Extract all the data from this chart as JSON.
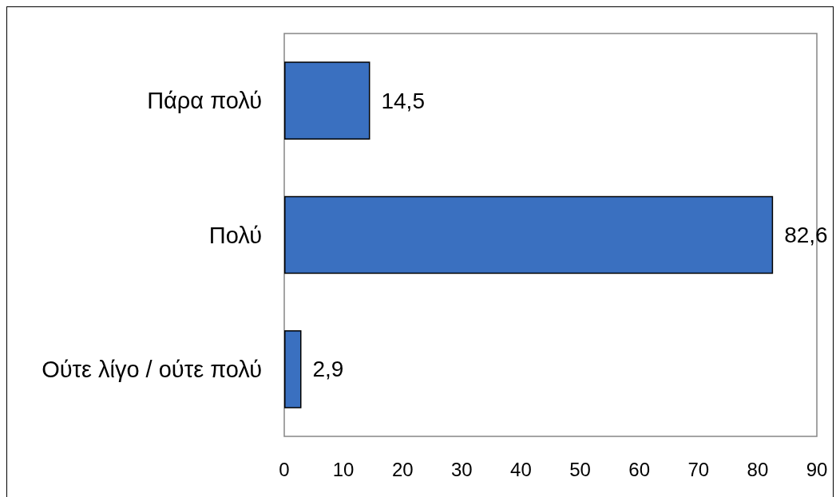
{
  "chart_data": {
    "type": "bar",
    "orientation": "horizontal",
    "categories": [
      "Πάρα πολύ",
      "Πολύ",
      "Ούτε λίγο / ούτε πολύ"
    ],
    "values": [
      14.5,
      82.6,
      2.9
    ],
    "value_labels": [
      "14,5",
      "82,6",
      "2,9"
    ],
    "color": "#3a70c0",
    "xlim": [
      0,
      90
    ],
    "xticks": [
      0,
      10,
      20,
      30,
      40,
      50,
      60,
      70,
      80,
      90
    ]
  }
}
